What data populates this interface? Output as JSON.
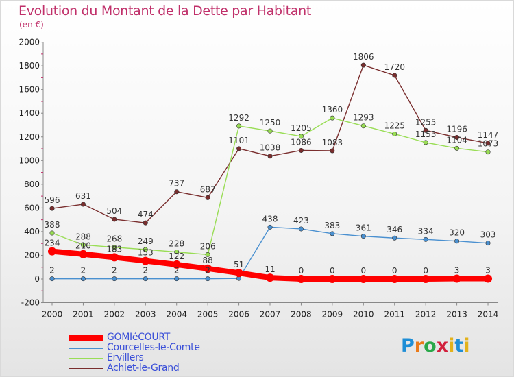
{
  "title": "Evolution du Montant de la Dette par Habitant",
  "subtitle": "(en €)",
  "logo_text": "Proxiti",
  "chart_data": {
    "type": "line",
    "x": [
      "2000",
      "2001",
      "2002",
      "2003",
      "2004",
      "2005",
      "2006",
      "2007",
      "2008",
      "2009",
      "2010",
      "2011",
      "2012",
      "2013",
      "2014"
    ],
    "ylim": [
      -200,
      2000
    ],
    "yticks": [
      "-200",
      "0",
      "200",
      "400",
      "600",
      "800",
      "1000",
      "1200",
      "1400",
      "1600",
      "1800",
      "2000"
    ],
    "grid": false,
    "legend_position": "bottom-left",
    "series": [
      {
        "name": "GOMIéCOURT",
        "color": "#ff0000",
        "values": [
          234,
          210,
          183,
          153,
          122,
          88,
          51,
          11,
          0,
          0,
          0,
          0,
          0,
          3,
          3
        ],
        "labels": [
          "234",
          "210",
          "183",
          "153",
          "122",
          "88",
          "51",
          "11",
          "0",
          "0",
          "0",
          "0",
          "0",
          "3",
          "3"
        ]
      },
      {
        "name": "Courcelles-le-Comte",
        "color": "#4a90d0",
        "values": [
          2,
          2,
          2,
          2,
          2,
          2,
          5,
          438,
          423,
          383,
          361,
          346,
          334,
          320,
          303
        ],
        "labels": [
          "2",
          "2",
          "2",
          "2",
          "2",
          "2",
          "",
          "438",
          "423",
          "383",
          "361",
          "346",
          "334",
          "320",
          "303"
        ]
      },
      {
        "name": "Ervillers",
        "color": "#99dd55",
        "values": [
          388,
          288,
          268,
          249,
          228,
          206,
          1292,
          1250,
          1205,
          1360,
          1293,
          1225,
          1153,
          1104,
          1073
        ],
        "labels": [
          "388",
          "288",
          "268",
          "249",
          "228",
          "206",
          "1292",
          "1250",
          "1205",
          "1360",
          "1293",
          "1225",
          "1153",
          "1104",
          "1073"
        ]
      },
      {
        "name": "Achiet-le-Grand",
        "color": "#7a2e2e",
        "values": [
          596,
          631,
          504,
          474,
          737,
          687,
          1101,
          1038,
          1086,
          1083,
          1806,
          1720,
          1255,
          1196,
          1147
        ],
        "labels": [
          "596",
          "631",
          "504",
          "474",
          "737",
          "687",
          "1101",
          "1038",
          "1086",
          "1083",
          "1806",
          "1720",
          "1255",
          "1196",
          "1147"
        ]
      }
    ]
  }
}
